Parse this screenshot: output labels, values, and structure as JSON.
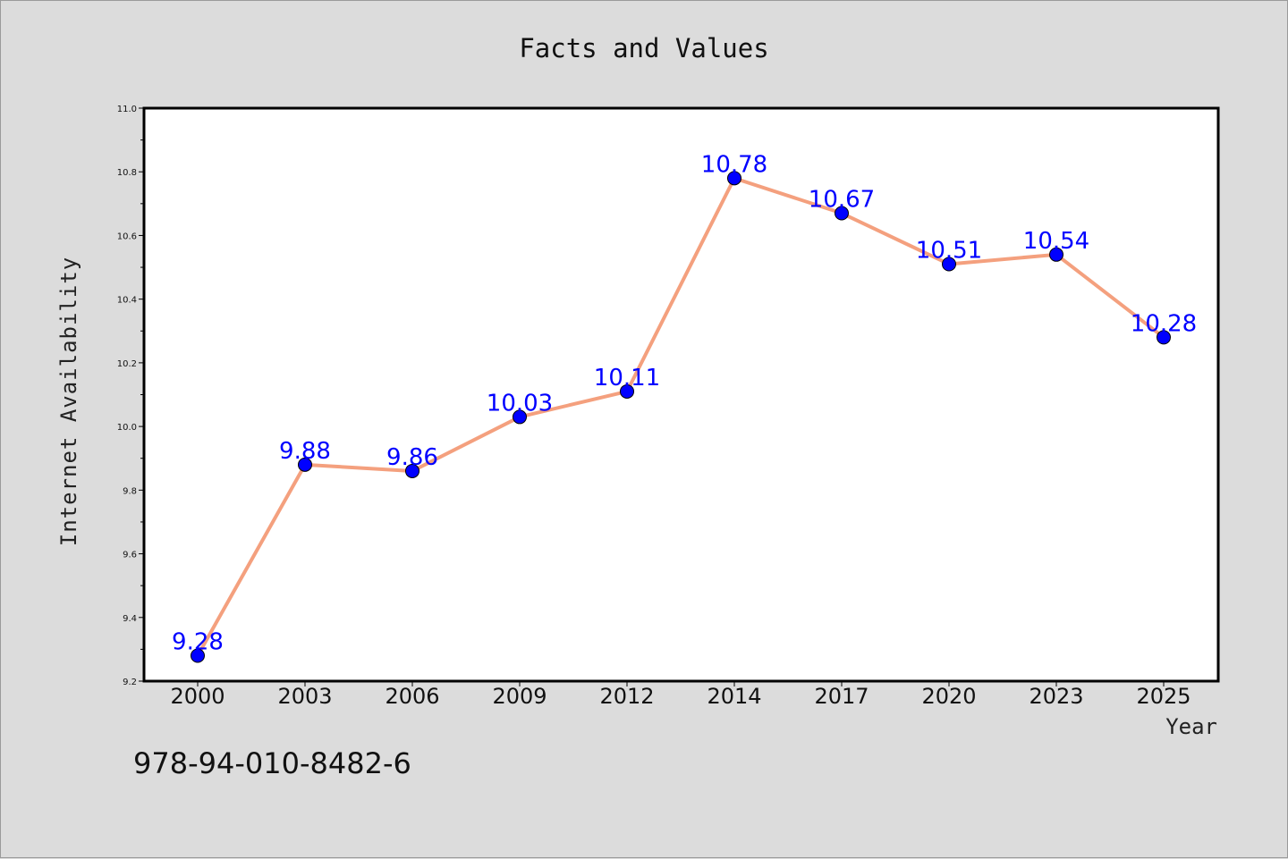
{
  "chart_data": {
    "type": "line",
    "title": "Facts and Values",
    "xlabel": "Year",
    "ylabel": "Internet Availability",
    "categories": [
      "2000",
      "2003",
      "2006",
      "2009",
      "2012",
      "2014",
      "2017",
      "2020",
      "2023",
      "2025"
    ],
    "values": [
      9.28,
      9.88,
      9.86,
      10.03,
      10.11,
      10.78,
      10.67,
      10.51,
      10.54,
      10.28
    ],
    "data_labels": [
      "9.28",
      "9.88",
      "9.86",
      "10.03",
      "10.11",
      "10.78",
      "10.67",
      "10.51",
      "10.54",
      "10.28"
    ],
    "ylim": [
      9.2,
      11.0
    ],
    "yticks": [
      "9.2",
      "9.4",
      "9.6",
      "9.8",
      "10.0",
      "10.2",
      "10.4",
      "10.6",
      "10.8",
      "11.0"
    ],
    "grid": false,
    "line_color": "#f4a07e",
    "marker_color": "#0000ff",
    "label_color": "#0000ff"
  },
  "annotation": "978-94-010-8482-6"
}
